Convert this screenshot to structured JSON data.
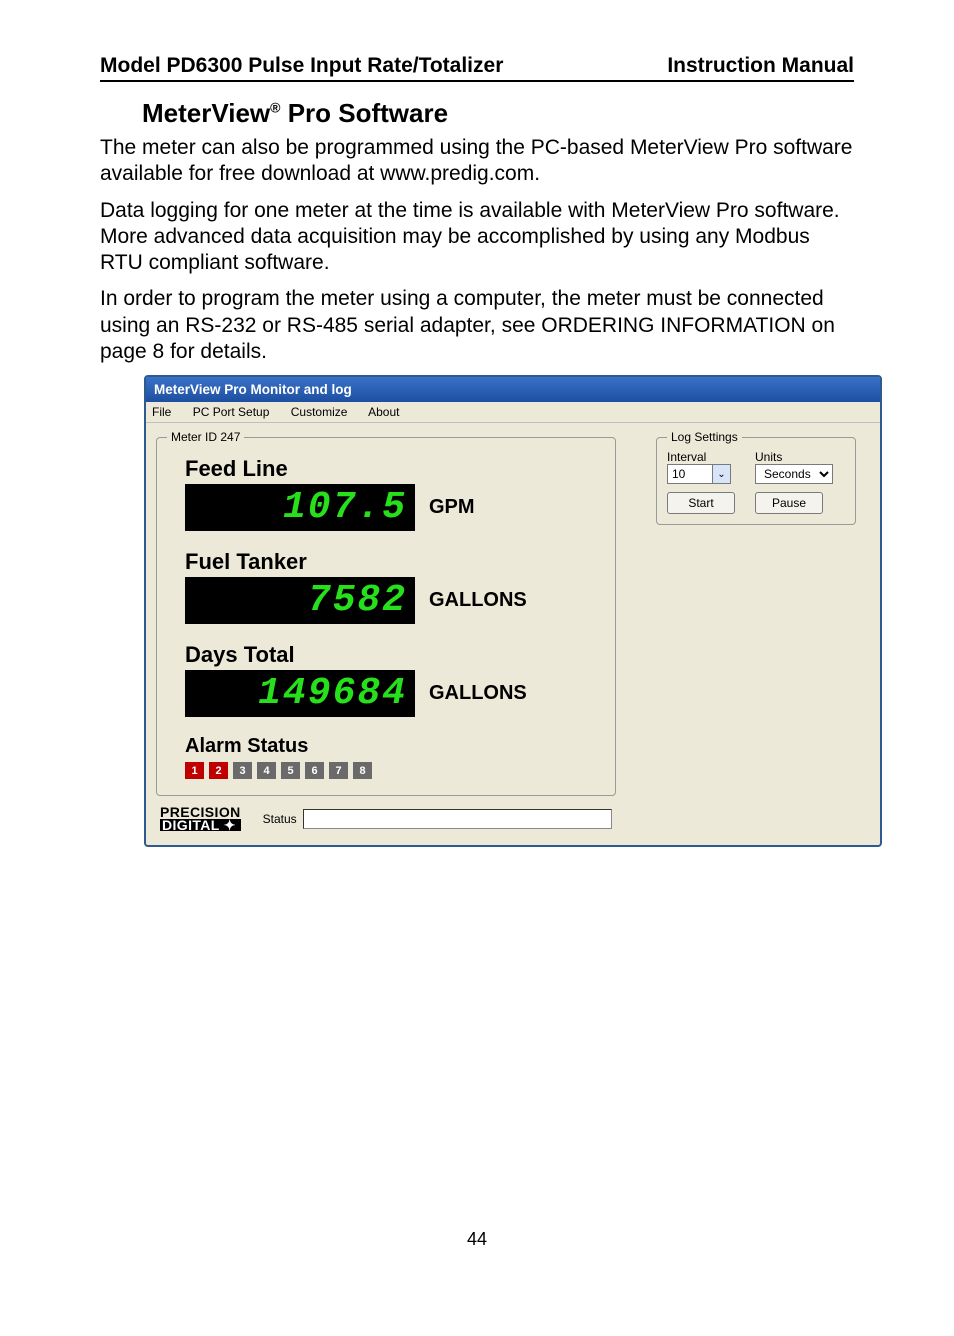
{
  "page": {
    "header_left": "Model PD6300 Pulse Input Rate/Totalizer",
    "header_right": "Instruction Manual",
    "section_prefix": "MeterView",
    "section_suffix": " Pro Software",
    "para1": "The meter can also be programmed using the PC-based MeterView Pro software available for free download at www.predig.com.",
    "para2": "Data logging for one meter at the time is available with MeterView Pro software. More advanced data acquisition may be accomplished by using any Modbus RTU compliant software.",
    "para3": "In order to program the meter using a computer, the meter must be connected using an RS-232 or RS-485 serial adapter, see ORDERING INFORMATION on page 8 for details.",
    "page_number": "44"
  },
  "app": {
    "title": "MeterView Pro Monitor and log",
    "menu": {
      "file": "File",
      "port": "PC Port Setup",
      "custom": "Customize",
      "about": "About"
    },
    "meter_group_legend": "Meter ID 247",
    "meters": [
      {
        "label": "Feed Line",
        "value": "107.5",
        "unit": "GPM"
      },
      {
        "label": "Fuel Tanker",
        "value": "7582",
        "unit": "GALLONS"
      },
      {
        "label": "Days Total",
        "value": "149684",
        "unit": "GALLONS"
      }
    ],
    "alarm_label": "Alarm Status",
    "alarms": [
      {
        "n": "1",
        "active": true
      },
      {
        "n": "2",
        "active": true
      },
      {
        "n": "3",
        "active": false
      },
      {
        "n": "4",
        "active": false
      },
      {
        "n": "5",
        "active": false
      },
      {
        "n": "6",
        "active": false
      },
      {
        "n": "7",
        "active": false
      },
      {
        "n": "8",
        "active": false
      }
    ],
    "alarm_colors": {
      "active": "#c00000",
      "inactive": "#6a6a6a"
    },
    "logo": {
      "l1": "PRECISION",
      "l2": "DIGITAL ✦"
    },
    "status_label": "Status",
    "log": {
      "legend": "Log Settings",
      "interval_label": "Interval",
      "interval_value": "10",
      "units_label": "Units",
      "units_value": "Seconds",
      "start": "Start",
      "pause": "Pause"
    }
  },
  "style": {
    "lcd_bg": "#000000",
    "lcd_fg": "#27e01c",
    "app_bg": "#ece9d8",
    "app_border": "#2f5a8f",
    "titlebar_gradient_top": "#3a72c8",
    "titlebar_gradient_bottom": "#1d4fa0"
  }
}
